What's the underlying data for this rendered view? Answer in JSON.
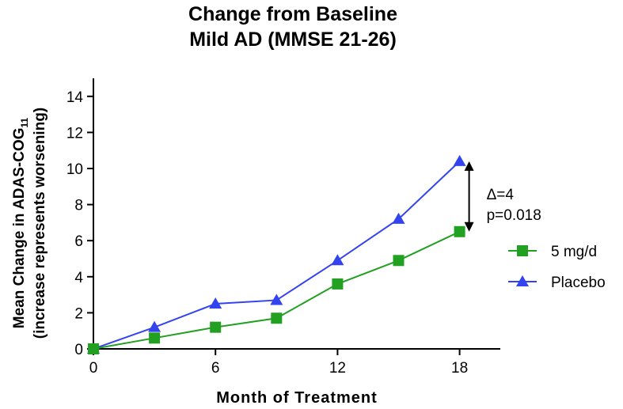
{
  "chart_data": {
    "type": "line",
    "title": [
      "Change from  Baseline",
      "Mild AD  (MMSE 21-26)"
    ],
    "xlabel": "Month of Treatment",
    "ylabel": [
      "Mean Change in ADAS-COG",
      "(increase represents worsening)"
    ],
    "ylabel_subscript": "11",
    "x": [
      0,
      3,
      6,
      9,
      12,
      15,
      18
    ],
    "xticks": [
      "0",
      "6",
      "12",
      "18"
    ],
    "xtick_values": [
      0,
      6,
      12,
      18
    ],
    "yticks": [
      "0",
      "2",
      "4",
      "6",
      "8",
      "10",
      "12",
      "14"
    ],
    "ytick_values": [
      0,
      2,
      4,
      6,
      8,
      10,
      12,
      14
    ],
    "xlim": [
      0,
      20
    ],
    "ylim": [
      0,
      15
    ],
    "series": [
      {
        "name": "5 mg/d",
        "color": "#22a022",
        "marker": "square",
        "values": [
          0,
          0.6,
          1.2,
          1.7,
          3.6,
          4.9,
          6.5
        ]
      },
      {
        "name": "Placebo",
        "color": "#3344ee",
        "marker": "triangle",
        "values": [
          0,
          1.2,
          2.5,
          2.7,
          4.9,
          7.2,
          10.4
        ]
      }
    ],
    "annotation": {
      "lines": [
        "Δ=4",
        "p=0.018"
      ],
      "x": 18,
      "y_from": 6.5,
      "y_to": 10.4
    },
    "legend": "right",
    "grid": false
  }
}
